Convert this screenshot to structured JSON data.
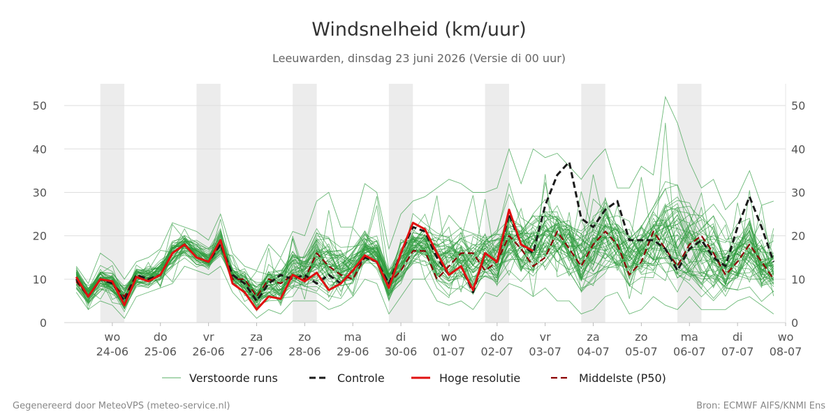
{
  "chart_data": {
    "type": "line",
    "title": "Windsnelheid (km/uur)",
    "subtitle": "Leeuwarden, dinsdag 23 juni 2026 (Versie di 00 uur)",
    "ylim": [
      0,
      55
    ],
    "y_ticks": [
      0,
      10,
      20,
      30,
      40,
      50
    ],
    "x_range_days": [
      0,
      15
    ],
    "x_ticks": [
      {
        "day": 1,
        "weekday": "wo",
        "date": "24-06"
      },
      {
        "day": 2,
        "weekday": "do",
        "date": "25-06"
      },
      {
        "day": 3,
        "weekday": "vr",
        "date": "26-06"
      },
      {
        "day": 4,
        "weekday": "za",
        "date": "27-06"
      },
      {
        "day": 5,
        "weekday": "zo",
        "date": "28-06"
      },
      {
        "day": 6,
        "weekday": "ma",
        "date": "29-06"
      },
      {
        "day": 7,
        "weekday": "di",
        "date": "30-06"
      },
      {
        "day": 8,
        "weekday": "wo",
        "date": "01-07"
      },
      {
        "day": 9,
        "weekday": "do",
        "date": "02-07"
      },
      {
        "day": 10,
        "weekday": "vr",
        "date": "03-07"
      },
      {
        "day": 11,
        "weekday": "za",
        "date": "04-07"
      },
      {
        "day": 12,
        "weekday": "zo",
        "date": "05-07"
      },
      {
        "day": 13,
        "weekday": "ma",
        "date": "06-07"
      },
      {
        "day": 14,
        "weekday": "di",
        "date": "07-07"
      },
      {
        "day": 15,
        "weekday": "wo",
        "date": "08-07"
      }
    ],
    "shaded_day_bands": [
      [
        0.75,
        1.25
      ],
      [
        2.75,
        3.25
      ],
      [
        4.75,
        5.25
      ],
      [
        6.75,
        7.25
      ],
      [
        8.75,
        9.25
      ],
      [
        10.75,
        11.25
      ],
      [
        12.75,
        13.25
      ]
    ],
    "grid": true,
    "legend_position": "bottom",
    "x_step_days": 0.25,
    "x_start_day": 0.25,
    "series": [
      {
        "name": "Controle",
        "color": "#1a1a1a",
        "style": "dashed",
        "values": [
          10,
          6,
          10,
          9,
          5,
          11,
          10,
          11,
          16,
          18,
          15,
          14,
          18,
          11,
          9,
          5,
          9,
          11,
          10,
          11,
          9,
          11,
          9,
          12,
          15,
          14,
          9,
          16,
          22,
          21,
          15,
          11,
          13,
          7,
          16,
          14,
          25,
          18,
          16,
          27,
          34,
          37,
          24,
          22,
          26,
          28,
          19,
          19,
          19,
          17,
          12,
          17,
          19,
          15,
          13,
          22,
          29,
          22,
          14
        ]
      },
      {
        "name": "Hoge resolutie",
        "color": "#e01010",
        "style": "solid",
        "values": [
          10.5,
          6,
          10,
          9.5,
          4,
          10.5,
          9.5,
          11,
          16,
          18,
          15,
          14,
          19,
          9,
          7,
          3,
          6,
          5.5,
          11,
          9.5,
          11.5,
          7.5,
          9,
          12,
          15.5,
          14,
          8,
          16,
          23,
          21.5,
          16,
          11,
          13,
          7.5,
          16,
          14,
          26,
          18,
          16.5
        ]
      },
      {
        "name": "Middelste (P50)",
        "color": "#8b0000",
        "style": "dashed",
        "values": [
          9.5,
          6,
          10,
          9,
          6,
          11,
          10,
          11,
          16,
          18,
          15,
          14,
          18,
          10,
          10,
          6,
          10,
          9,
          11,
          10,
          16,
          13,
          11,
          10,
          15,
          14,
          9,
          12,
          16.5,
          16.5,
          10,
          13,
          16,
          16,
          12,
          14,
          20,
          17,
          13,
          15,
          21,
          17,
          13,
          18,
          21,
          18,
          11,
          14,
          21,
          17,
          13,
          18,
          20,
          16,
          11,
          14,
          18,
          14,
          10
        ]
      }
    ],
    "ensemble": {
      "name": "Verstoorde runs",
      "color": "#2e9b3e",
      "member_count": 50,
      "envelope_min": [
        7,
        3,
        5,
        4,
        1,
        6,
        7,
        8,
        9,
        13,
        12,
        11,
        13,
        7,
        4,
        1,
        3,
        2,
        5,
        5,
        5,
        3,
        4,
        6,
        10,
        9,
        2,
        6,
        10,
        10,
        5,
        4,
        5,
        3,
        7,
        6,
        9,
        8,
        6,
        8,
        5,
        5,
        2,
        3,
        6,
        7,
        2,
        3,
        6,
        4,
        3,
        6,
        3,
        3,
        3,
        5,
        6,
        4,
        2
      ],
      "envelope_max": [
        13,
        9,
        16,
        14,
        10,
        14,
        15,
        17,
        23,
        22,
        21,
        19,
        25,
        16,
        13,
        12,
        18,
        15,
        21,
        20,
        28,
        30,
        22,
        22,
        32,
        30,
        17,
        25,
        28,
        29,
        31,
        33,
        32,
        30,
        30,
        31,
        40,
        32,
        40,
        38,
        39,
        36,
        33,
        37,
        40,
        31,
        31,
        36,
        34,
        52,
        46,
        37,
        31,
        33,
        26,
        29,
        35,
        27,
        28
      ],
      "p10": [
        8,
        4,
        7,
        6,
        2,
        8,
        8,
        9,
        12,
        15,
        13,
        12,
        15,
        8,
        6,
        3,
        5,
        4,
        7,
        7,
        7,
        6,
        6,
        8,
        12,
        11,
        4,
        8,
        13,
        13,
        7,
        6,
        7,
        5,
        9,
        8,
        12,
        10,
        8,
        10,
        9,
        8,
        5,
        6,
        9,
        10,
        5,
        6,
        9,
        8,
        6,
        8,
        6,
        5,
        5,
        7,
        9,
        6,
        4
      ],
      "p90": [
        12,
        8,
        13,
        12,
        9,
        13,
        13,
        15,
        20,
        21,
        19,
        17,
        22,
        14,
        12,
        10,
        14,
        13,
        17,
        16,
        22,
        21,
        18,
        18,
        22,
        21,
        14,
        20,
        23,
        24,
        22,
        21,
        22,
        21,
        21,
        22,
        29,
        25,
        27,
        28,
        30,
        27,
        23,
        26,
        29,
        26,
        24,
        26,
        28,
        32,
        30,
        27,
        26,
        27,
        21,
        23,
        26,
        21,
        20
      ]
    },
    "legend": [
      {
        "label": "Verstoorde runs",
        "color": "#2e9b3e",
        "style": "thin"
      },
      {
        "label": "Controle",
        "color": "#1a1a1a",
        "style": "dashed"
      },
      {
        "label": "Hoge resolutie",
        "color": "#e01010",
        "style": "solid"
      },
      {
        "label": "Middelste (P50)",
        "color": "#8b0000",
        "style": "dashed"
      }
    ]
  },
  "footer": {
    "left": "Gegenereerd door MeteoVPS (meteo-service.nl)",
    "right": "Bron: ECMWF AIFS/KNMI Ens"
  }
}
